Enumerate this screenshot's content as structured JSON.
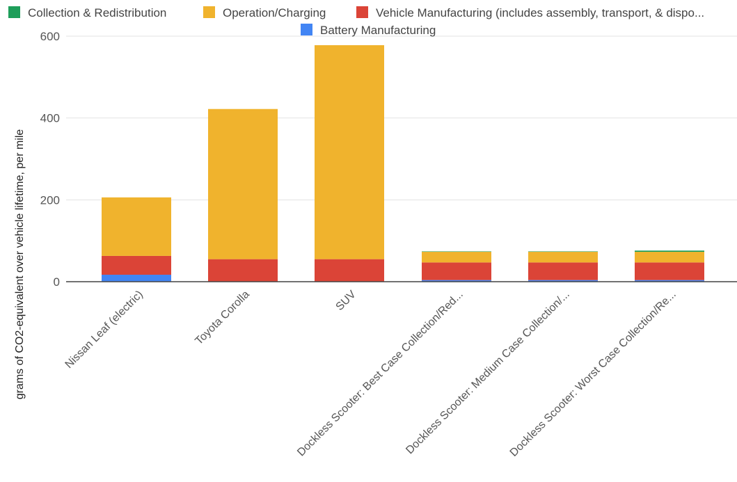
{
  "chart_data": {
    "type": "bar",
    "stacked": true,
    "ylabel": "grams of CO2-equivalent over vehicle lifetime, per mile",
    "ylim": [
      0,
      600
    ],
    "yticks": [
      0,
      200,
      400,
      600
    ],
    "grid": true,
    "legend_position": "top",
    "categories": [
      "Nissan Leaf (electric)",
      "Toyota Corolla",
      "SUV",
      "Dockless Scooter: Best Case Collection/Red...",
      "Dockless Scooter: Medium Case Collection/...",
      "Dockless Scooter: Worst Case Collection/Re..."
    ],
    "series": [
      {
        "name": "Battery Manufacturing",
        "color": "#4285F4",
        "values": [
          17,
          0,
          0,
          4,
          4,
          4
        ]
      },
      {
        "name": "Vehicle Manufacturing (includes assembly, transport, & dispo...",
        "color": "#DB4437",
        "values": [
          46,
          55,
          55,
          43,
          43,
          43
        ]
      },
      {
        "name": "Operation/Charging",
        "color": "#F0B32D",
        "values": [
          143,
          367,
          523,
          26,
          26,
          26
        ]
      },
      {
        "name": "Collection & Redistribution",
        "color": "#1E9E5A",
        "values": [
          0,
          0,
          0,
          1,
          1,
          3
        ]
      }
    ],
    "legend_order": [
      "Collection & Redistribution",
      "Operation/Charging",
      "Vehicle Manufacturing (includes assembly, transport, & dispo...",
      "Battery Manufacturing"
    ]
  }
}
